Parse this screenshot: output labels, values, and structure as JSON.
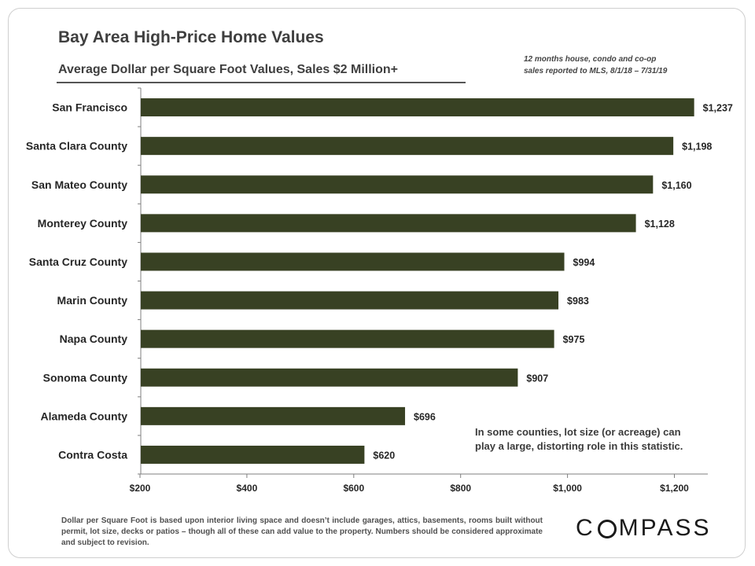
{
  "header": {
    "title": "Bay Area High-Price Home Values",
    "subtitle": "Average Dollar per Square Foot Values, Sales $2 Million+",
    "source_line_1": "12 months house, condo and co-op",
    "source_line_2": "sales reported to MLS, 8/1/18 – 7/31/19"
  },
  "annotation": {
    "line_1": "In some counties, lot size (or acreage) can",
    "line_2": "play a large, distorting role in this statistic."
  },
  "footnote": "Dollar per Square Foot is based upon interior living space and doesn’t include garages, attics, basements, rooms built without permit, lot size, decks or patios – though all of these can add value to the property. Numbers should be considered approximate and subject to revision.",
  "logo": {
    "left": "C",
    "right": "MPASS"
  },
  "colors": {
    "bar": "#384123",
    "axis": "#7f7f7f",
    "text": "#262626"
  },
  "chart_data": {
    "type": "bar",
    "orientation": "horizontal",
    "title": "Bay Area High-Price Home Values",
    "subtitle": "Average Dollar per Square Foot Values, Sales $2 Million+",
    "categories": [
      "San Francisco",
      "Santa Clara County",
      "San Mateo County",
      "Monterey County",
      "Santa Cruz County",
      "Marin County",
      "Napa County",
      "Sonoma County",
      "Alameda County",
      "Contra Costa"
    ],
    "values": [
      1237,
      1198,
      1160,
      1128,
      994,
      983,
      975,
      907,
      696,
      620
    ],
    "value_labels": [
      "$1,237",
      "$1,198",
      "$1,160",
      "$1,128",
      "$994",
      "$983",
      "$975",
      "$907",
      "$696",
      "$620"
    ],
    "x_ticks": [
      200,
      400,
      600,
      800,
      1000,
      1200
    ],
    "x_tick_labels": [
      "$200",
      "$400",
      "$600",
      "$800",
      "$1,000",
      "$1,200"
    ],
    "xlim": [
      200,
      1260
    ],
    "xlabel": "",
    "ylabel": "",
    "grid": false,
    "legend": "none"
  }
}
